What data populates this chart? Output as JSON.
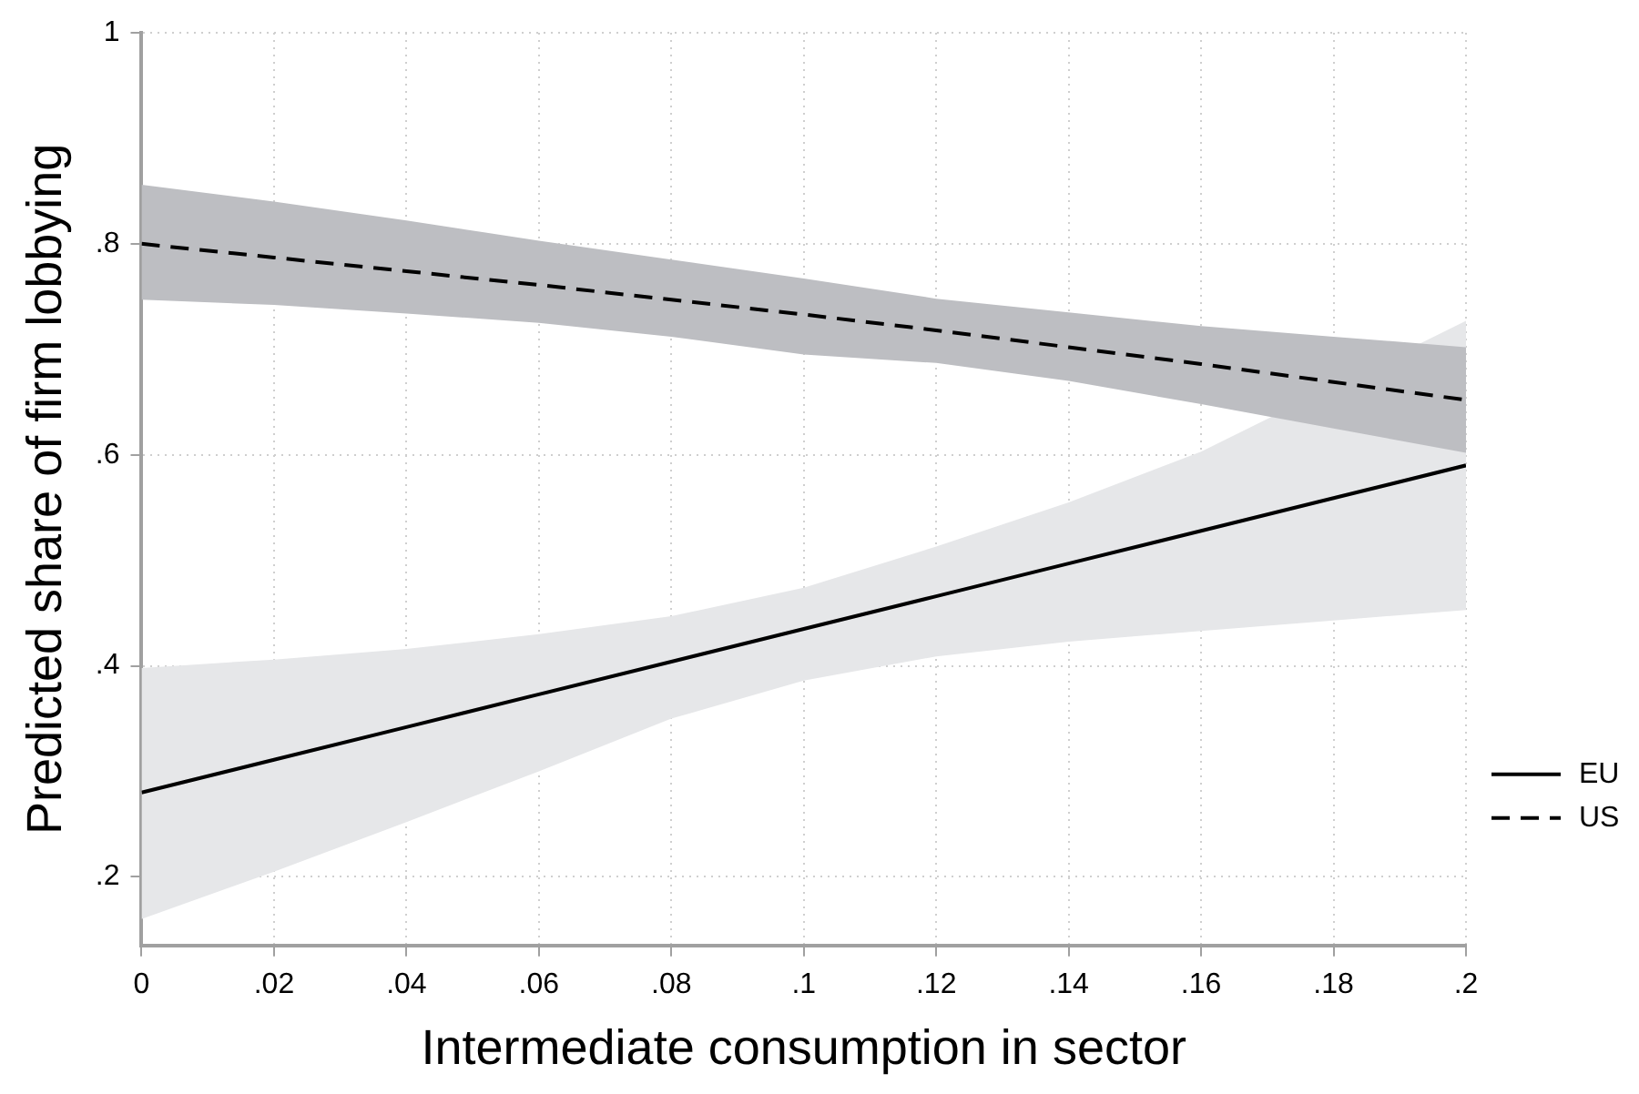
{
  "chart_data": {
    "type": "line",
    "xlabel": "Intermediate consumption in sector",
    "ylabel": "Predicted share of firm lobbying",
    "x": [
      0,
      0.02,
      0.04,
      0.06,
      0.08,
      0.1,
      0.12,
      0.14,
      0.16,
      0.18,
      0.2
    ],
    "series": [
      {
        "name": "EU",
        "color": "#000000",
        "line_style": "solid",
        "values": [
          0.28,
          0.311,
          0.342,
          0.373,
          0.404,
          0.435,
          0.466,
          0.497,
          0.528,
          0.559,
          0.59
        ],
        "lower": [
          0.16,
          0.205,
          0.252,
          0.3,
          0.35,
          0.386,
          0.409,
          0.423,
          0.433,
          0.443,
          0.453
        ],
        "upper": [
          0.398,
          0.406,
          0.416,
          0.43,
          0.447,
          0.474,
          0.513,
          0.555,
          0.603,
          0.665,
          0.727
        ]
      },
      {
        "name": "US",
        "color": "#000000",
        "line_style": "dashed",
        "values": [
          0.8,
          0.787,
          0.774,
          0.761,
          0.747,
          0.733,
          0.718,
          0.702,
          0.686,
          0.669,
          0.652
        ],
        "lower": [
          0.747,
          0.742,
          0.734,
          0.725,
          0.712,
          0.695,
          0.687,
          0.67,
          0.648,
          0.625,
          0.602
        ],
        "upper": [
          0.856,
          0.84,
          0.822,
          0.803,
          0.785,
          0.767,
          0.748,
          0.735,
          0.722,
          0.712,
          0.702
        ]
      }
    ],
    "xlim": [
      0,
      0.2
    ],
    "xticks": [
      0,
      {
        "value": 0.02,
        "label": ".02"
      },
      {
        "value": 0.04,
        "label": ".04"
      },
      {
        "value": 0.06,
        "label": ".06"
      },
      {
        "value": 0.08,
        "label": ".08"
      },
      {
        "value": 0.1,
        "label": ".1"
      },
      {
        "value": 0.12,
        "label": ".12"
      },
      {
        "value": 0.14,
        "label": ".14"
      },
      {
        "value": 0.16,
        "label": ".16"
      },
      {
        "value": 0.18,
        "label": ".18"
      },
      {
        "value": 0.2,
        "label": ".2"
      }
    ],
    "ylim": [
      0.135,
      1
    ],
    "yticks": [
      {
        "value": 0.2,
        "label": ".2"
      },
      {
        "value": 0.4,
        "label": ".4"
      },
      {
        "value": 0.6,
        "label": ".6"
      },
      {
        "value": 0.8,
        "label": ".8"
      },
      1
    ],
    "grid": true,
    "legend": "right",
    "marker": "none"
  }
}
